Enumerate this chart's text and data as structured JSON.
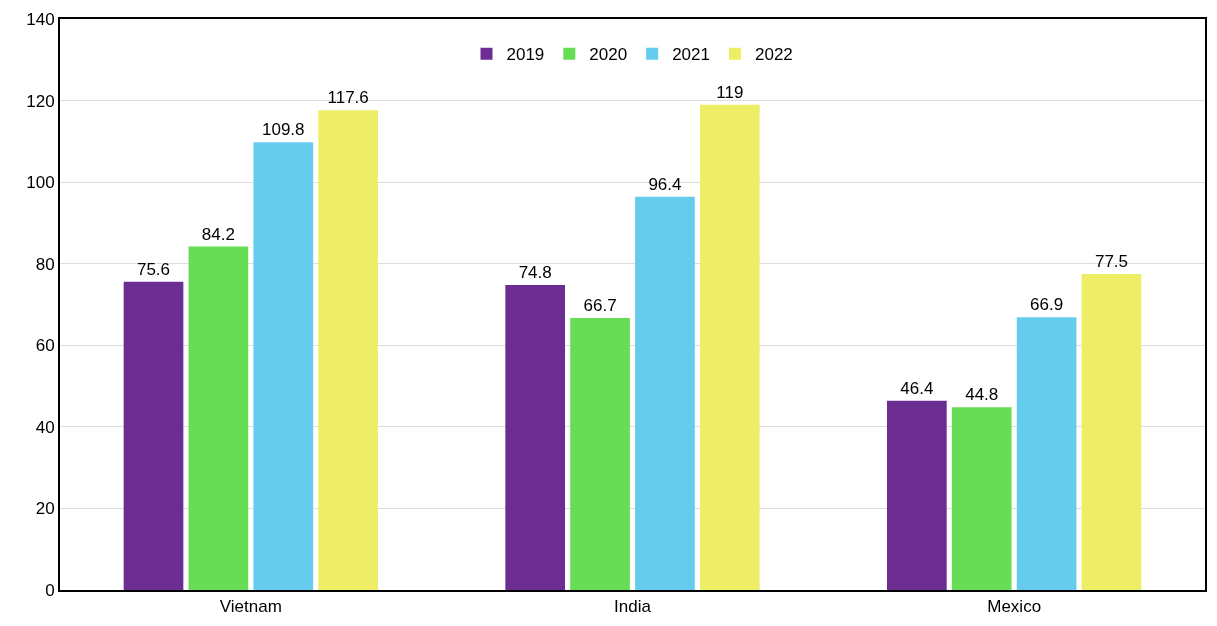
{
  "chart_data": {
    "type": "bar",
    "categories": [
      "Vietnam",
      "India",
      "Mexico"
    ],
    "series": [
      {
        "name": "2019",
        "color": "#6b2d91",
        "values": [
          75.6,
          74.8,
          46.4
        ]
      },
      {
        "name": "2020",
        "color": "#66dd55",
        "values": [
          84.2,
          66.7,
          44.8
        ]
      },
      {
        "name": "2021",
        "color": "#66ccee",
        "values": [
          109.8,
          96.4,
          66.9
        ]
      },
      {
        "name": "2022",
        "color": "#eeee66",
        "values": [
          117.6,
          119,
          77.5
        ]
      }
    ],
    "ylim": [
      0,
      140
    ],
    "yticks": [
      0,
      20,
      40,
      60,
      80,
      100,
      120,
      140
    ],
    "grid": "y",
    "legend": "top",
    "data_labels": true
  }
}
